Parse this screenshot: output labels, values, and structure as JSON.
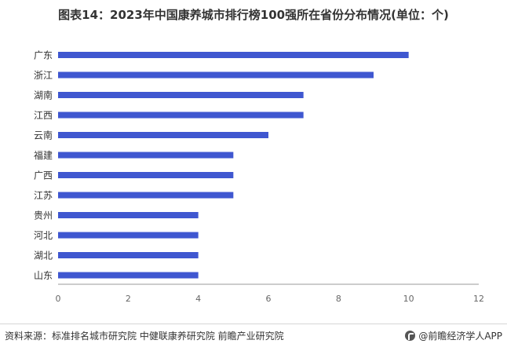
{
  "title": "图表14：2023年中国康养城市排行榜100强所在省份分布情况(单位：个)",
  "source": "资料来源：标准排名城市研究院 中健联康养研究院 前瞻产业研究院",
  "brand": "@前瞻经济学人APP",
  "colors": {
    "bar": "#3f57d0",
    "axis": "#999999",
    "text": "#333333"
  },
  "chart_data": {
    "type": "bar",
    "orientation": "horizontal",
    "categories": [
      "广东",
      "浙江",
      "湖南",
      "江西",
      "云南",
      "福建",
      "广西",
      "江苏",
      "贵州",
      "河北",
      "湖北",
      "山东"
    ],
    "values": [
      10,
      9,
      7,
      7,
      6,
      5,
      5,
      5,
      4,
      4,
      4,
      4
    ],
    "xlim": [
      0,
      12
    ],
    "xticks": [
      0,
      2,
      4,
      6,
      8,
      10,
      12
    ],
    "grid": false,
    "legend": "none"
  }
}
